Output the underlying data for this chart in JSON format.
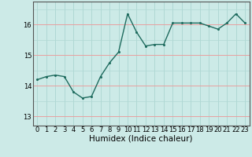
{
  "x": [
    0,
    1,
    2,
    3,
    4,
    5,
    6,
    7,
    8,
    9,
    10,
    11,
    12,
    13,
    14,
    15,
    16,
    17,
    18,
    19,
    20,
    21,
    22,
    23
  ],
  "y": [
    14.2,
    14.3,
    14.35,
    14.3,
    13.8,
    13.6,
    13.65,
    14.3,
    14.75,
    15.1,
    16.35,
    15.75,
    15.3,
    15.35,
    15.35,
    16.05,
    16.05,
    16.05,
    16.05,
    15.95,
    15.85,
    16.05,
    16.35,
    16.05
  ],
  "line_color": "#1e6b5e",
  "marker_color": "#1e6b5e",
  "bg_color": "#cceae7",
  "grid_color_v": "#b0d8d4",
  "grid_color_h": "#e8a0a0",
  "xlabel": "Humidex (Indice chaleur)",
  "xlabel_fontsize": 7.5,
  "tick_fontsize": 6,
  "ylim": [
    12.7,
    16.75
  ],
  "xlim": [
    -0.5,
    23.5
  ],
  "yticks": [
    13,
    14,
    15,
    16
  ],
  "xticks": [
    0,
    1,
    2,
    3,
    4,
    5,
    6,
    7,
    8,
    9,
    10,
    11,
    12,
    13,
    14,
    15,
    16,
    17,
    18,
    19,
    20,
    21,
    22,
    23
  ],
  "line_width": 1.0,
  "marker_size": 2.2
}
